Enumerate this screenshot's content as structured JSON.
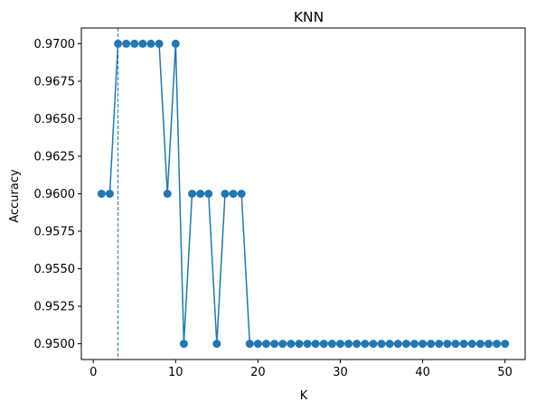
{
  "chart_data": {
    "type": "line",
    "title": "KNN",
    "xlabel": "K",
    "ylabel": "Accuracy",
    "xlim": [
      -1.45,
      52.45
    ],
    "ylim": [
      0.94895,
      0.97105
    ],
    "xticks": [
      0,
      10,
      20,
      30,
      40,
      50
    ],
    "xtick_labels": [
      "0",
      "10",
      "20",
      "30",
      "40",
      "50"
    ],
    "yticks": [
      0.95,
      0.9525,
      0.955,
      0.9575,
      0.96,
      0.9625,
      0.965,
      0.9675,
      0.97
    ],
    "ytick_labels": [
      "0.9500",
      "0.9525",
      "0.9550",
      "0.9575",
      "0.9600",
      "0.9625",
      "0.9650",
      "0.9675",
      "0.9700"
    ],
    "grid": false,
    "marker": "circle",
    "color": "#1f77b4",
    "vline": {
      "x": 3,
      "style": "dashed",
      "color": "#1f77b4"
    },
    "series": [
      {
        "x": [
          1,
          2,
          3,
          4,
          5,
          6,
          7,
          8,
          9,
          10,
          11,
          12,
          13,
          14,
          15,
          16,
          17,
          18,
          19,
          20,
          21,
          22,
          23,
          24,
          25,
          26,
          27,
          28,
          29,
          30,
          31,
          32,
          33,
          34,
          35,
          36,
          37,
          38,
          39,
          40,
          41,
          42,
          43,
          44,
          45,
          46,
          47,
          48,
          49,
          50
        ],
        "values": [
          0.96,
          0.96,
          0.97,
          0.97,
          0.97,
          0.97,
          0.97,
          0.97,
          0.96,
          0.97,
          0.95,
          0.96,
          0.96,
          0.96,
          0.95,
          0.96,
          0.96,
          0.96,
          0.95,
          0.95,
          0.95,
          0.95,
          0.95,
          0.95,
          0.95,
          0.95,
          0.95,
          0.95,
          0.95,
          0.95,
          0.95,
          0.95,
          0.95,
          0.95,
          0.95,
          0.95,
          0.95,
          0.95,
          0.95,
          0.95,
          0.95,
          0.95,
          0.95,
          0.95,
          0.95,
          0.95,
          0.95,
          0.95,
          0.95,
          0.95
        ]
      }
    ]
  }
}
